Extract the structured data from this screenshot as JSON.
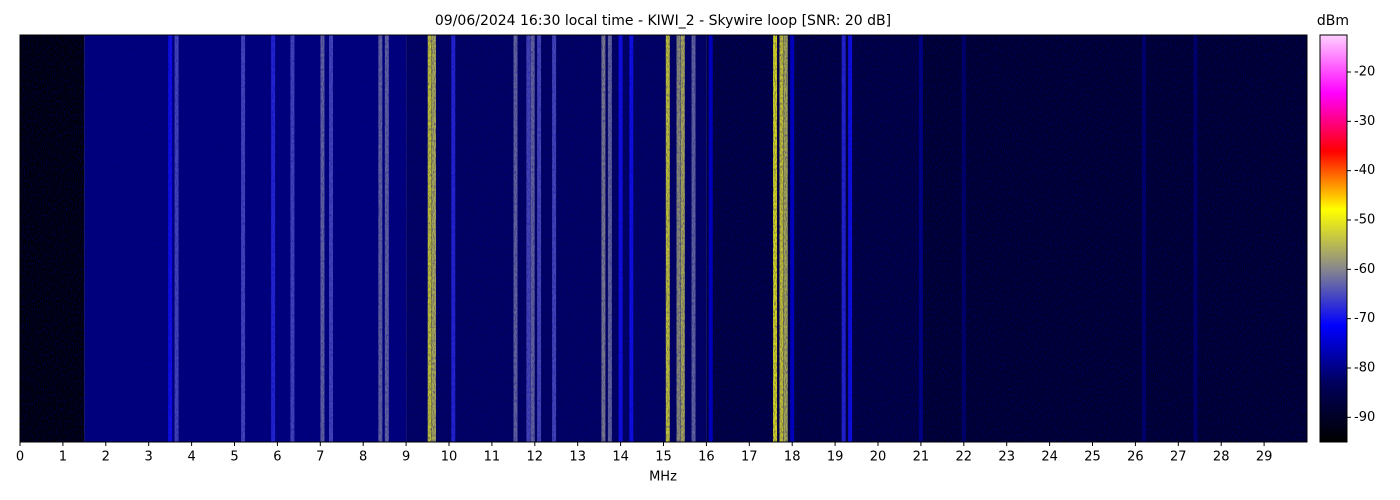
{
  "chart_data": {
    "type": "spectrogram",
    "title": "09/06/2024 16:30 local time - KIWI_2 - Skywire loop [SNR: 20 dB]",
    "xlabel": "MHz",
    "xlim": [
      0,
      30
    ],
    "xticks": [
      0,
      1,
      2,
      3,
      4,
      5,
      6,
      7,
      8,
      9,
      10,
      11,
      12,
      13,
      14,
      15,
      16,
      17,
      18,
      19,
      20,
      21,
      22,
      23,
      24,
      25,
      26,
      27,
      28,
      29
    ],
    "colorbar_label": "dBm",
    "clim": [
      -95,
      -12.5
    ],
    "cticks": [
      -20,
      -30,
      -40,
      -50,
      -60,
      -70,
      -80,
      -90
    ],
    "colormap": [
      "#000000",
      "#00005a",
      "#0000ff",
      "#8a8a8a",
      "#ffff00",
      "#ff0000",
      "#ff00ff",
      "#ffd0ff"
    ],
    "noise": {
      "edges": [
        0,
        1.5,
        9,
        16,
        21,
        30
      ],
      "levels": [
        -94,
        -81,
        -83,
        -87,
        -89
      ]
    },
    "signals": {
      "freq": [
        3.5,
        3.65,
        5.2,
        5.9,
        6.35,
        7.05,
        7.25,
        8.4,
        8.55,
        9.55,
        9.65,
        10.1,
        11.55,
        11.85,
        11.95,
        12.1,
        12.45,
        13.6,
        13.75,
        14.0,
        14.25,
        15.1,
        15.35,
        15.45,
        15.7,
        16.1,
        17.6,
        17.75,
        17.85,
        18.0,
        19.2,
        19.35,
        21.0,
        22.0,
        26.2,
        27.4
      ],
      "level": [
        -70,
        -65,
        -65,
        -68,
        -65,
        -62,
        -65,
        -62,
        -62,
        -52,
        -55,
        -68,
        -62,
        -65,
        -62,
        -65,
        -65,
        -60,
        -62,
        -70,
        -70,
        -52,
        -58,
        -55,
        -62,
        -75,
        -50,
        -52,
        -55,
        -75,
        -68,
        -70,
        -80,
        -82,
        -82,
        -82
      ]
    }
  }
}
